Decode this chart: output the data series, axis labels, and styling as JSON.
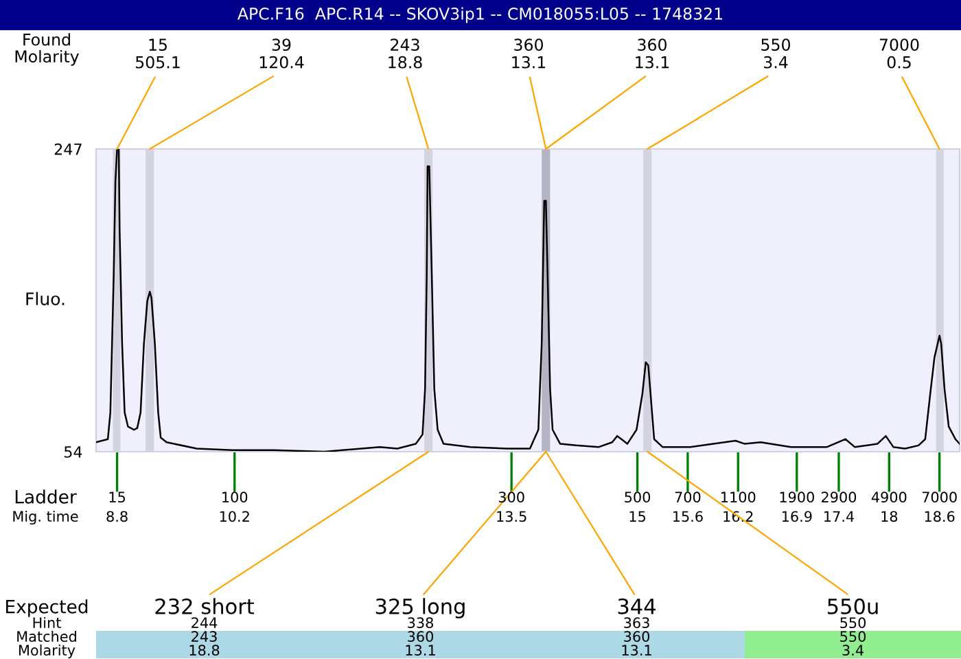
{
  "chart_data": {
    "type": "line",
    "title": "APC.F16  APC.R14 -- SKOV3ip1 -- CM018055:L05 -- 1748321",
    "xlabel": "Mig. time",
    "ylabel": "Fluo.",
    "x": [
      8.55,
      8.69,
      8.72,
      8.76,
      8.78,
      8.8,
      8.82,
      8.83,
      8.86,
      8.89,
      8.93,
      9.0,
      9.04,
      9.08,
      9.12,
      9.16,
      9.19,
      9.21,
      9.25,
      9.29,
      9.32,
      9.39,
      9.75,
      10.18,
      10.67,
      11.27,
      11.93,
      12.14,
      12.36,
      12.44,
      12.47,
      12.49,
      12.5,
      12.52,
      12.55,
      12.58,
      12.62,
      12.69,
      13.01,
      13.45,
      13.72,
      13.82,
      13.86,
      13.89,
      13.91,
      13.93,
      13.96,
      13.99,
      14.08,
      14.27,
      14.54,
      14.7,
      14.76,
      14.81,
      14.88,
      14.99,
      15.06,
      15.1,
      15.13,
      15.17,
      15.2,
      15.3,
      15.63,
      16.17,
      16.28,
      16.47,
      16.83,
      17.26,
      17.48,
      17.59,
      17.86,
      17.96,
      18.05,
      18.19,
      18.35,
      18.43,
      18.49,
      18.54,
      18.6,
      18.62,
      18.66,
      18.71,
      18.79,
      18.84
    ],
    "series": [
      {
        "color": "#000000",
        "values": [
          60,
          62,
          79,
          167,
          226,
          247,
          247,
          196,
          123,
          79,
          70,
          68,
          69,
          79,
          123,
          150,
          156,
          152,
          123,
          79,
          63,
          60,
          56,
          55,
          55,
          54,
          57,
          56,
          59,
          65,
          94,
          167,
          236,
          236,
          167,
          94,
          68,
          59,
          57,
          56,
          56,
          68,
          123,
          214,
          214,
          167,
          94,
          68,
          59,
          58,
          57,
          60,
          64,
          62,
          59,
          68,
          91,
          111,
          109,
          82,
          62,
          57,
          57,
          61,
          59,
          60,
          57,
          57,
          62,
          57,
          59,
          64,
          57,
          56,
          58,
          62,
          91,
          114,
          128,
          123,
          94,
          70,
          62,
          59
        ]
      }
    ],
    "xlim": [
      8.55,
      18.84
    ],
    "xticks": [
      8.8,
      10.2,
      13.5,
      15,
      15.6,
      16.2,
      16.9,
      17.4,
      18,
      18.6
    ],
    "ylim": [
      54,
      247
    ],
    "yticks": [
      247,
      54
    ],
    "bands": [
      {
        "axis": "x",
        "from": 8.75,
        "to": 8.84,
        "color": "#d4d4e0"
      },
      {
        "axis": "x",
        "from": 9.14,
        "to": 9.24,
        "color": "#d4d4e0"
      },
      {
        "axis": "x",
        "from": 12.46,
        "to": 12.56,
        "color": "#d4d4e0"
      },
      {
        "axis": "x",
        "from": 13.86,
        "to": 13.96,
        "color": "#b4b4c4"
      },
      {
        "axis": "x",
        "from": 15.07,
        "to": 15.17,
        "color": "#d4d4e0"
      },
      {
        "axis": "x",
        "from": 18.56,
        "to": 18.65,
        "color": "#d4d4e0"
      }
    ],
    "annotations": [
      {
        "text": "15\n505.1",
        "x": 8.8,
        "y": 247
      },
      {
        "text": "39\n120.4",
        "x": 9.19,
        "y": 247
      },
      {
        "text": "243\n18.8",
        "x": 12.51,
        "y": 247
      },
      {
        "text": "360\n13.1",
        "x": 13.91,
        "y": 247
      },
      {
        "text": "360\n13.1",
        "x": 13.91,
        "y": 247
      },
      {
        "text": "550\n3.4",
        "x": 15.12,
        "y": 247
      },
      {
        "text": "7000\n0.5",
        "x": 18.6,
        "y": 247
      },
      {
        "text": "232 short",
        "x": 12.51,
        "y": 54
      },
      {
        "text": "325 long",
        "x": 13.91,
        "y": 54
      },
      {
        "text": "344",
        "x": 13.91,
        "y": 54
      },
      {
        "text": "550u",
        "x": 15.12,
        "y": 54
      },
      "Found\nMolarity",
      "Ladder",
      "15",
      "100",
      "300",
      "500",
      "700",
      "1100",
      "1900",
      "2900",
      "4900",
      "7000",
      "Expected",
      "Hint",
      "Matched",
      "Molarity",
      "244",
      "243",
      "18.8",
      "338",
      "360",
      "13.1",
      "363",
      "360",
      "13.1",
      "550",
      "550",
      "3.4"
    ]
  }
}
